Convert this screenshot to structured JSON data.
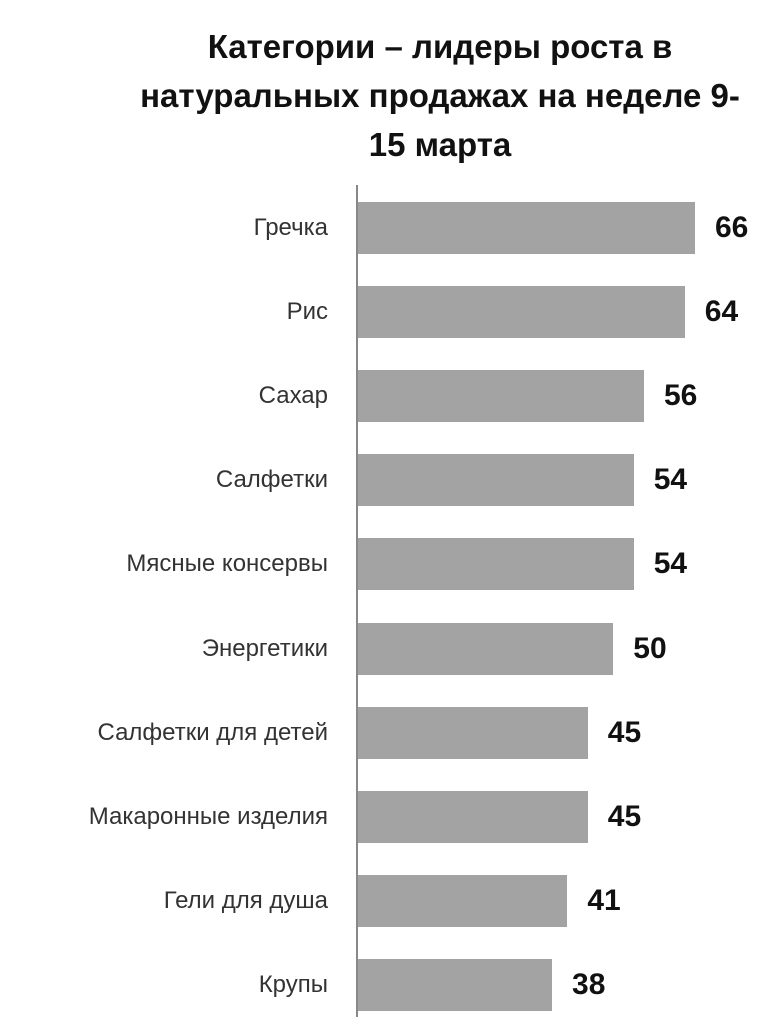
{
  "chart_data": {
    "type": "barh",
    "title": "Категории – лидеры роста в натуральных продажах на неделе 9-15 марта",
    "categories": [
      "Гречка",
      "Рис",
      "Сахар",
      "Салфетки",
      "Мясные консервы",
      "Энергетики",
      "Салфетки для детей",
      "Макаронные изделия",
      "Гели для душа",
      "Крупы"
    ],
    "values": [
      66,
      64,
      56,
      54,
      54,
      50,
      45,
      45,
      41,
      38
    ],
    "color": "#a3a3a3"
  }
}
